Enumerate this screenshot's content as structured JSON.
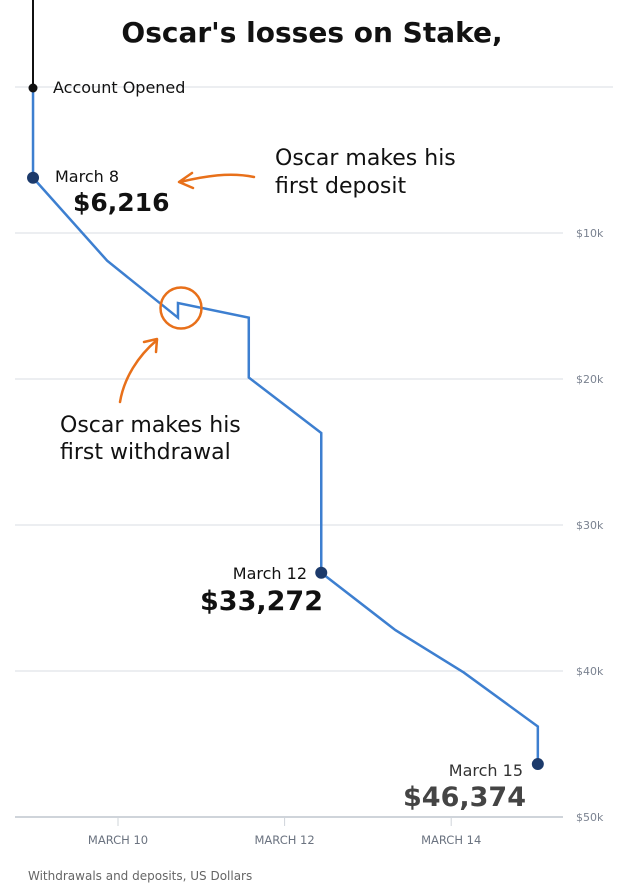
{
  "chart_data": {
    "type": "line",
    "title": "Oscar's losses on Stake,",
    "caption": "Withdrawals and deposits, US Dollars",
    "xlabel": "",
    "ylabel": "",
    "x_ticks": [
      {
        "day": 10,
        "label": "MARCH 10"
      },
      {
        "day": 12,
        "label": "MARCH 12"
      },
      {
        "day": 14,
        "label": "MARCH 14"
      }
    ],
    "y_ticks": [
      {
        "value": 10000,
        "label": "$10k"
      },
      {
        "value": 20000,
        "label": "$20k"
      },
      {
        "value": 30000,
        "label": "$30k"
      },
      {
        "value": 40000,
        "label": "$40k"
      },
      {
        "value": 50000,
        "label": "$50k"
      }
    ],
    "ylim": [
      0,
      50000
    ],
    "y_inverted": true,
    "grid": true,
    "colors": {
      "line": "#3d7fd0",
      "marker": "#1c3a6b",
      "annotation": "#e8701a",
      "opening": "#111111"
    },
    "series": [
      {
        "x": [
          8.98,
          8.98,
          9.87,
          10.72,
          10.72,
          11.57,
          11.57,
          12.44,
          12.44,
          13.33,
          14.15,
          15.04,
          15.04
        ],
        "y": [
          0,
          6216,
          11900,
          15800,
          14800,
          15800,
          19900,
          23700,
          33272,
          37200,
          40100,
          43800,
          46374
        ]
      }
    ],
    "annotations": {
      "account_opened": {
        "x": 8.98,
        "y": 0,
        "label": "Account Opened"
      },
      "points": [
        {
          "x": 8.98,
          "y": 6216,
          "date": "March 8",
          "value": "$6,216"
        },
        {
          "x": 12.44,
          "y": 33272,
          "date": "March 12",
          "value": "$33,272"
        },
        {
          "x": 15.04,
          "y": 46374,
          "date": "March 15",
          "value": "$46,374"
        }
      ],
      "deposit_note": [
        "Oscar makes his",
        "first deposit"
      ],
      "withdrawal_note": [
        "Oscar makes his",
        "first withdrawal"
      ]
    }
  }
}
